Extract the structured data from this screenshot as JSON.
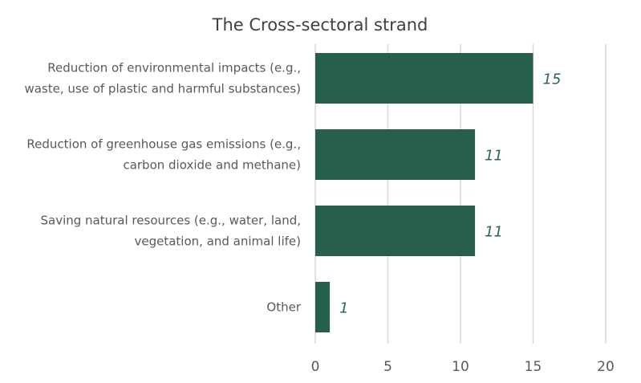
{
  "chart_data": {
    "type": "bar",
    "orientation": "horizontal",
    "title": "The Cross-sectoral strand",
    "categories": [
      [
        "Reduction of environmental impacts (e.g.,",
        "waste, use of plastic and harmful substances)"
      ],
      [
        "Reduction of greenhouse gas emissions (e.g.,",
        "carbon dioxide and methane)"
      ],
      [
        "Saving natural resources (e.g., water, land,",
        "vegetation, and animal life)"
      ],
      [
        "Other"
      ]
    ],
    "values": [
      15,
      11,
      11,
      1
    ],
    "data_labels": [
      "15",
      "11",
      "11",
      "1"
    ],
    "xlim": [
      0,
      20
    ],
    "xticks": [
      0,
      5,
      10,
      15,
      20
    ],
    "xtick_labels": [
      "0",
      "5",
      "10",
      "15",
      "20"
    ],
    "xlabel": "",
    "ylabel": "",
    "grid": "vertical",
    "legend": "none",
    "bar_color": "#285e4c",
    "label_color": "#2a6650"
  }
}
